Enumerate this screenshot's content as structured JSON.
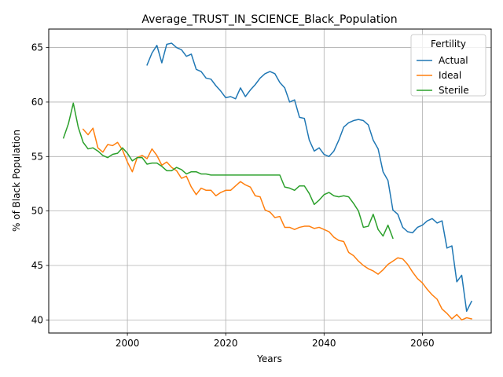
{
  "chart_data": {
    "type": "line",
    "title": "Average_TRUST_IN_SCIENCE_Black_Population",
    "xlabel": "Years",
    "ylabel": "% of Black Population",
    "xlim": [
      1984,
      2074
    ],
    "ylim": [
      38.8,
      66.7
    ],
    "xticks": [
      2000,
      2020,
      2040,
      2060
    ],
    "yticks": [
      40,
      45,
      50,
      55,
      60,
      65
    ],
    "grid": true,
    "legend": {
      "title": "Fertility",
      "position": "top-right"
    },
    "series": [
      {
        "name": "Actual",
        "color": "#1f77b4",
        "x": [
          2004,
          2005,
          2006,
          2007,
          2008,
          2009,
          2010,
          2011,
          2012,
          2013,
          2014,
          2015,
          2016,
          2017,
          2018,
          2019,
          2020,
          2021,
          2022,
          2023,
          2024,
          2025,
          2026,
          2027,
          2028,
          2029,
          2030,
          2031,
          2032,
          2033,
          2034,
          2035,
          2036,
          2037,
          2038,
          2039,
          2040,
          2041,
          2042,
          2043,
          2044,
          2045,
          2046,
          2047,
          2048,
          2049,
          2050,
          2051,
          2052,
          2053,
          2054,
          2055,
          2056,
          2057,
          2058,
          2059,
          2060,
          2061,
          2062,
          2063,
          2064,
          2065,
          2066,
          2067,
          2068,
          2069,
          2070
        ],
        "y": [
          63.4,
          64.5,
          65.2,
          63.6,
          65.3,
          65.4,
          65.0,
          64.8,
          64.2,
          64.4,
          63.0,
          62.8,
          62.2,
          62.1,
          61.5,
          61.0,
          60.4,
          60.5,
          60.3,
          61.3,
          60.5,
          61.1,
          61.6,
          62.2,
          62.6,
          62.8,
          62.6,
          61.8,
          61.3,
          60.0,
          60.2,
          58.6,
          58.5,
          56.5,
          55.5,
          55.8,
          55.2,
          55.0,
          55.5,
          56.5,
          57.7,
          58.1,
          58.3,
          58.4,
          58.3,
          57.9,
          56.5,
          55.7,
          53.6,
          52.8,
          50.1,
          49.7,
          48.5,
          48.1,
          48.0,
          48.5,
          48.7,
          49.1,
          49.3,
          48.9,
          49.1,
          46.6,
          46.8,
          43.5,
          44.1,
          40.8,
          41.7
        ]
      },
      {
        "name": "Ideal",
        "color": "#ff7f0e",
        "x": [
          1991,
          1992,
          1993,
          1994,
          1995,
          1996,
          1997,
          1998,
          1999,
          2000,
          2001,
          2002,
          2003,
          2004,
          2005,
          2006,
          2007,
          2008,
          2009,
          2010,
          2011,
          2012,
          2013,
          2014,
          2015,
          2016,
          2017,
          2018,
          2019,
          2020,
          2021,
          2022,
          2023,
          2024,
          2025,
          2026,
          2027,
          2028,
          2029,
          2030,
          2031,
          2032,
          2033,
          2034,
          2035,
          2036,
          2037,
          2038,
          2039,
          2040,
          2041,
          2042,
          2043,
          2044,
          2045,
          2046,
          2047,
          2048,
          2049,
          2050,
          2051,
          2052,
          2053,
          2054,
          2055,
          2056,
          2057,
          2058,
          2059,
          2060,
          2061,
          2062,
          2063,
          2064,
          2065,
          2066,
          2067,
          2068,
          2069,
          2070
        ],
        "y": [
          57.5,
          57.0,
          57.6,
          55.8,
          55.4,
          56.1,
          56.0,
          56.3,
          55.6,
          54.5,
          53.6,
          54.9,
          55.1,
          54.8,
          55.7,
          55.1,
          54.2,
          54.5,
          54.0,
          53.7,
          53.0,
          53.2,
          52.2,
          51.5,
          52.1,
          51.9,
          51.9,
          51.4,
          51.7,
          51.9,
          51.9,
          52.3,
          52.7,
          52.4,
          52.2,
          51.4,
          51.3,
          50.1,
          49.9,
          49.4,
          49.5,
          48.5,
          48.5,
          48.3,
          48.5,
          48.6,
          48.6,
          48.4,
          48.5,
          48.3,
          48.1,
          47.6,
          47.3,
          47.2,
          46.2,
          45.9,
          45.4,
          45.0,
          44.7,
          44.5,
          44.2,
          44.6,
          45.1,
          45.4,
          45.7,
          45.6,
          45.1,
          44.4,
          43.8,
          43.4,
          42.8,
          42.3,
          41.9,
          41.0,
          40.6,
          40.1,
          40.5,
          40.0,
          40.2,
          40.1
        ]
      },
      {
        "name": "Sterile",
        "color": "#2ca02c",
        "x": [
          1987,
          1988,
          1989,
          1990,
          1991,
          1992,
          1993,
          1994,
          1995,
          1996,
          1997,
          1998,
          1999,
          2000,
          2001,
          2002,
          2003,
          2004,
          2005,
          2006,
          2007,
          2008,
          2009,
          2010,
          2011,
          2012,
          2013,
          2014,
          2015,
          2016,
          2017,
          2018,
          2019,
          2020,
          2021,
          2022,
          2023,
          2024,
          2025,
          2026,
          2027,
          2028,
          2029,
          2030,
          2031,
          2032,
          2033,
          2034,
          2035,
          2036,
          2037,
          2038,
          2039,
          2040,
          2041,
          2042,
          2043,
          2044,
          2045,
          2046,
          2047,
          2048,
          2049,
          2050,
          2051,
          2052,
          2053,
          2054
        ],
        "y": [
          56.7,
          58.0,
          59.9,
          57.7,
          56.3,
          55.7,
          55.8,
          55.5,
          55.1,
          54.9,
          55.2,
          55.3,
          55.8,
          55.3,
          54.6,
          54.9,
          54.9,
          54.3,
          54.4,
          54.4,
          54.1,
          53.7,
          53.7,
          54.0,
          53.8,
          53.4,
          53.6,
          53.6,
          53.4,
          53.4,
          53.3,
          53.3,
          53.3,
          53.3,
          53.3,
          53.3,
          53.3,
          53.3,
          53.3,
          53.3,
          53.3,
          53.3,
          53.3,
          53.3,
          53.3,
          52.2,
          52.1,
          51.9,
          52.3,
          52.3,
          51.6,
          50.6,
          51.0,
          51.5,
          51.7,
          51.4,
          51.3,
          51.4,
          51.3,
          50.7,
          50.0,
          48.5,
          48.6,
          49.7,
          48.3,
          47.7,
          48.7,
          47.5
        ]
      }
    ]
  }
}
